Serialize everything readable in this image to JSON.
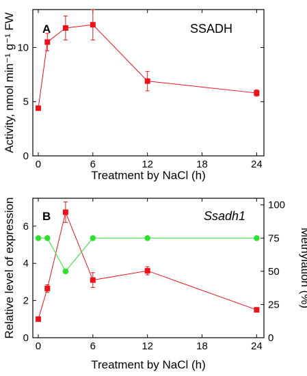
{
  "chart_data": [
    {
      "type": "line",
      "panel_letter": "A",
      "title": "SSADH",
      "title_italic": false,
      "xlabel": "Treatment by NaCl (h)",
      "ylabel": "Activity, nmol min⁻¹ g⁻¹ FW",
      "xlim": [
        -0.6,
        24.8
      ],
      "ylim": [
        0,
        13.5
      ],
      "xticks": [
        0,
        6,
        12,
        18,
        24
      ],
      "yticks": [
        0,
        5,
        10
      ],
      "grid": false,
      "series": [
        {
          "color": "#e8141c",
          "marker": "square",
          "x": [
            0,
            1,
            3,
            6,
            12,
            24
          ],
          "y": [
            4.4,
            10.5,
            11.8,
            12.1,
            6.9,
            5.8
          ],
          "err": [
            0.15,
            0.8,
            1.1,
            1.4,
            0.9,
            0.3
          ]
        }
      ]
    },
    {
      "type": "line",
      "panel_letter": "B",
      "title": "Ssadh1",
      "title_italic": true,
      "xlabel": "Treatment by NaCl (h)",
      "ylabel": "Relative level of expression",
      "y2label": "Methylation (%)",
      "xlim": [
        -0.6,
        24.8
      ],
      "ylim": [
        0,
        7.5
      ],
      "y2lim": [
        0,
        105
      ],
      "xticks": [
        0,
        6,
        12,
        18,
        24
      ],
      "yticks": [
        0,
        2,
        4,
        6
      ],
      "y2ticks": [
        0,
        25,
        50,
        75,
        100
      ],
      "grid": false,
      "series": [
        {
          "color": "#e8141c",
          "marker": "square",
          "axis": "left",
          "x": [
            0,
            1,
            3,
            6,
            12,
            24
          ],
          "y": [
            1.0,
            2.65,
            6.75,
            3.1,
            3.6,
            1.5
          ],
          "err": [
            0.08,
            0.2,
            0.55,
            0.4,
            0.22,
            0.08
          ]
        },
        {
          "color": "#2ee12e",
          "marker": "circle",
          "axis": "right",
          "x": [
            0,
            1,
            3,
            6,
            12,
            24
          ],
          "y": [
            75,
            75,
            50,
            75,
            75,
            75
          ],
          "err": [
            0,
            0,
            0,
            0,
            0,
            0
          ]
        }
      ]
    }
  ]
}
